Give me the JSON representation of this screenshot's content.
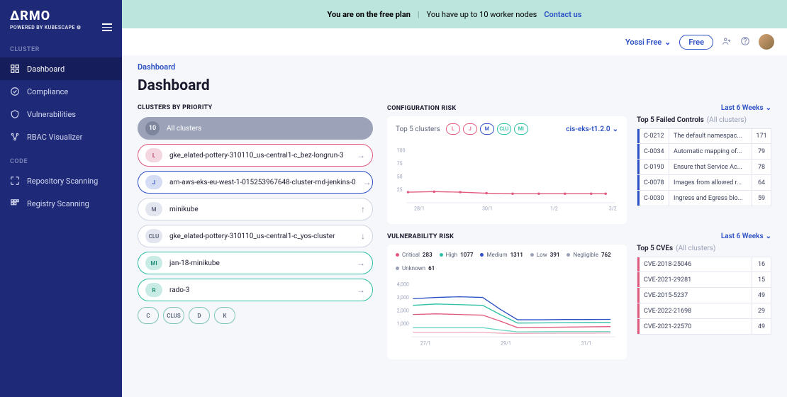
{
  "logo": {
    "main": "ΔRMO",
    "sub": "POWERED BY KUBESCAPE ⚙"
  },
  "sidebar": {
    "section1_label": "CLUSTER",
    "section2_label": "CODE",
    "items1": [
      {
        "label": "Dashboard",
        "active": true
      },
      {
        "label": "Compliance",
        "active": false
      },
      {
        "label": "Vulnerabilities",
        "active": false
      },
      {
        "label": "RBAC Visualizer",
        "active": false
      }
    ],
    "items2": [
      {
        "label": "Repository Scanning"
      },
      {
        "label": "Registry Scanning"
      }
    ]
  },
  "topbar": {
    "plan": "You are on the free plan",
    "nodes": "You have up to 10 worker nodes",
    "contact": "Contact us"
  },
  "userbar": {
    "user": "Yossi Free",
    "pill": "Free"
  },
  "crumb": "Dashboard",
  "page_title": "Dashboard",
  "clusters": {
    "heading": "CLUSTERS BY PRIORITY",
    "all_count": "10",
    "all_label": "All clusters",
    "rows": [
      {
        "badge": "L",
        "name": "gke_elated-pottery-310110_us-central1-c_bez-longrun-3",
        "arrow": "→",
        "border": "#e15a7e",
        "badge_bg": "#f3d6df",
        "badge_color": "#b54863"
      },
      {
        "badge": "J",
        "name": "arn-aws-eks-eu-west-1-015253967648-cluster-rnd-jenkins-0",
        "arrow": "→",
        "border": "#2b4fc4",
        "badge_bg": "#d5ddf5",
        "badge_color": "#2b4fc4"
      },
      {
        "badge": "M",
        "name": "minikube",
        "arrow": "↑",
        "border": "#d0d4e2",
        "badge_bg": "#e3e6ef",
        "badge_color": "#5a6378"
      },
      {
        "badge": "CLU",
        "name": "gke_elated-pottery-310110_us-central1-c_yos-cluster",
        "arrow": "↓",
        "border": "#d0d4e2",
        "badge_bg": "#e3e6ef",
        "badge_color": "#5a6378"
      },
      {
        "badge": "MI",
        "name": "jan-18-minikube",
        "arrow": "→",
        "border": "#2bbfa3",
        "badge_bg": "#c8ece5",
        "badge_color": "#1f8a76"
      },
      {
        "badge": "R",
        "name": "rado-3",
        "arrow": "→",
        "border": "#2bbfa3",
        "badge_bg": "#c8ece5",
        "badge_color": "#1f8a76"
      }
    ],
    "chips": [
      "C",
      "CLUS",
      "D",
      "K"
    ]
  },
  "config_risk": {
    "heading": "CONFIGURATION RISK",
    "range_label": "Last 6 Weeks",
    "chart_label": "Top 5 clusters",
    "minis": [
      {
        "t": "L",
        "c": "#e15a7e"
      },
      {
        "t": "J",
        "c": "#e15a7e"
      },
      {
        "t": "M",
        "c": "#2b4fc4"
      },
      {
        "t": "CLU",
        "c": "#2bbfa3"
      },
      {
        "t": "MI",
        "c": "#2bbfa3"
      }
    ],
    "dropdown": "cis-eks-t1.2.0",
    "yticks": [
      "100",
      "75",
      "50",
      "25"
    ],
    "xticks": [
      "28/1",
      "30/1",
      "1/2",
      "3/2"
    ],
    "line": {
      "color": "#e15a7e",
      "points": [
        [
          0,
          20
        ],
        [
          45,
          21
        ],
        [
          90,
          20
        ],
        [
          135,
          18
        ],
        [
          180,
          17
        ],
        [
          225,
          17
        ],
        [
          270,
          17
        ],
        [
          315,
          17
        ],
        [
          340,
          17
        ]
      ]
    },
    "ylim": [
      0,
      100
    ],
    "failed": {
      "title": "Top 5 Failed Controls",
      "sub": "(All clusters)",
      "rows": [
        {
          "id": "C-0212",
          "desc": "The default namespac...",
          "count": "171",
          "bar": "#2b4fc4"
        },
        {
          "id": "C-0034",
          "desc": "Automatic mapping of...",
          "count": "79",
          "bar": "#2b4fc4"
        },
        {
          "id": "C-0190",
          "desc": "Ensure that Service Ac...",
          "count": "78",
          "bar": "#2b4fc4"
        },
        {
          "id": "C-0078",
          "desc": "Images from allowed r...",
          "count": "64",
          "bar": "#2b4fc4"
        },
        {
          "id": "C-0030",
          "desc": "Ingress and Egress blo...",
          "count": "59",
          "bar": "#2b4fc4"
        }
      ]
    }
  },
  "vuln_risk": {
    "heading": "VULNERABILITY RISK",
    "range_label": "Last 6 Weeks",
    "legend": [
      {
        "label": "Critical",
        "value": "283",
        "color": "#e15a7e"
      },
      {
        "label": "High",
        "value": "1077",
        "color": "#2bbfa3"
      },
      {
        "label": "Medium",
        "value": "1311",
        "color": "#2b4fc4"
      },
      {
        "label": "Low",
        "value": "391",
        "color": "#9aa0b8"
      },
      {
        "label": "Negligible",
        "value": "762",
        "color": "#9aa0b8"
      },
      {
        "label": "Unknown",
        "value": "61",
        "color": "#9aa0b8"
      }
    ],
    "yticks": [
      "4,000",
      "3,000",
      "2,000",
      "1,000"
    ],
    "xticks": [
      "27/1",
      "29/1",
      "31/1"
    ],
    "lines": [
      {
        "color": "#2b4fc4",
        "pts": [
          [
            0,
            2900
          ],
          [
            40,
            3000
          ],
          [
            80,
            3050
          ],
          [
            120,
            3000
          ],
          [
            150,
            2100
          ],
          [
            180,
            1300
          ],
          [
            220,
            1300
          ],
          [
            260,
            1320
          ],
          [
            300,
            1320
          ],
          [
            340,
            1330
          ]
        ]
      },
      {
        "color": "#2bbfa3",
        "pts": [
          [
            0,
            2400
          ],
          [
            40,
            2500
          ],
          [
            80,
            2450
          ],
          [
            120,
            2400
          ],
          [
            150,
            1700
          ],
          [
            180,
            1050
          ],
          [
            220,
            1060
          ],
          [
            260,
            1080
          ],
          [
            300,
            1090
          ],
          [
            340,
            1100
          ]
        ]
      },
      {
        "color": "#e15a7e",
        "pts": [
          [
            0,
            1700
          ],
          [
            40,
            1750
          ],
          [
            80,
            1700
          ],
          [
            120,
            1650
          ],
          [
            150,
            1200
          ],
          [
            180,
            700
          ],
          [
            220,
            720
          ],
          [
            260,
            740
          ],
          [
            300,
            760
          ],
          [
            340,
            780
          ]
        ]
      },
      {
        "color": "#67d4c4",
        "pts": [
          [
            0,
            700
          ],
          [
            40,
            700
          ],
          [
            80,
            700
          ],
          [
            120,
            700
          ],
          [
            150,
            520
          ],
          [
            180,
            380
          ],
          [
            220,
            390
          ],
          [
            260,
            400
          ],
          [
            300,
            400
          ],
          [
            340,
            400
          ]
        ]
      },
      {
        "color": "#f0a8bd",
        "pts": [
          [
            0,
            350
          ],
          [
            40,
            350
          ],
          [
            80,
            350
          ],
          [
            120,
            340
          ],
          [
            150,
            280
          ],
          [
            180,
            260
          ],
          [
            220,
            270
          ],
          [
            260,
            280
          ],
          [
            300,
            280
          ],
          [
            340,
            290
          ]
        ]
      }
    ],
    "ylim": [
      0,
      4000
    ],
    "cves": {
      "title": "Top 5 CVEs",
      "sub": "(All clusters)",
      "rows": [
        {
          "id": "CVE-2018-25046",
          "count": "16",
          "bar": "#e15a7e"
        },
        {
          "id": "CVE-2021-29281",
          "count": "15",
          "bar": "#e15a7e"
        },
        {
          "id": "CVE-2015-5237",
          "count": "49",
          "bar": "#e15a7e"
        },
        {
          "id": "CVE-2022-21698",
          "count": "29",
          "bar": "#e15a7e"
        },
        {
          "id": "CVE-2021-22570",
          "count": "49",
          "bar": "#e15a7e"
        }
      ]
    }
  }
}
